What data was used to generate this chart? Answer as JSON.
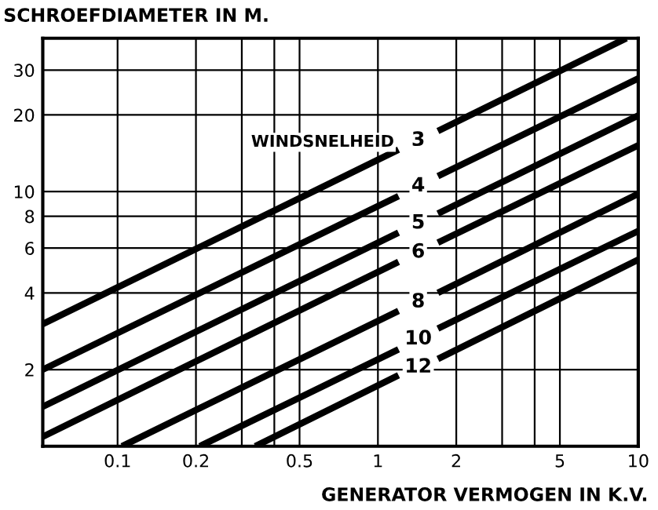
{
  "chart_data": {
    "type": "line",
    "ylabel": "SCHROEFDIAMETER IN M.",
    "xlabel": "GENERATOR VERMOGEN IN K.V.",
    "annotations": [
      "WINDSNELHEID"
    ],
    "log": "xy",
    "grid": true,
    "legend": false,
    "marker": "none",
    "line_style": "solid",
    "xlim": [
      0.0516,
      10
    ],
    "xticks": [
      {
        "value": 0.1,
        "label": "0.1"
      },
      {
        "value": 0.2,
        "label": "0.2"
      },
      {
        "value": 0.3,
        "label": null
      },
      {
        "value": 0.4,
        "label": null
      },
      {
        "value": 0.5,
        "label": "0.5"
      },
      1,
      2,
      {
        "value": 3,
        "label": null
      },
      {
        "value": 4,
        "label": null
      },
      5,
      10
    ],
    "ylim": [
      1,
      40
    ],
    "yticks": [
      2,
      4,
      6,
      8,
      10,
      20,
      30
    ],
    "series": [
      {
        "name": "3",
        "color": "#000000",
        "x": [
          0.0516,
          1.2,
          1.45,
          1.7,
          9.0
        ],
        "values": [
          3.02,
          14.6,
          null,
          17.3,
          40
        ]
      },
      {
        "name": "4",
        "color": "#000000",
        "x": [
          0.0516,
          1.2,
          1.45,
          1.7,
          10
        ],
        "values": [
          2.0,
          9.6,
          null,
          11.5,
          27.8
        ]
      },
      {
        "name": "5",
        "color": "#000000",
        "x": [
          0.0516,
          1.2,
          1.45,
          1.7,
          10
        ],
        "values": [
          1.43,
          6.9,
          null,
          8.2,
          19.9
        ]
      },
      {
        "name": "6",
        "color": "#000000",
        "x": [
          0.0516,
          1.2,
          1.45,
          1.7,
          10
        ],
        "values": [
          1.09,
          5.3,
          null,
          6.3,
          15.2
        ]
      },
      {
        "name": "8",
        "color": "#000000",
        "x": [
          0.104,
          1.2,
          1.45,
          1.7,
          10
        ],
        "values": [
          1,
          3.4,
          null,
          4.0,
          9.8
        ]
      },
      {
        "name": "10",
        "color": "#000000",
        "x": [
          0.207,
          1.2,
          1.45,
          1.7,
          10
        ],
        "values": [
          1,
          2.4,
          null,
          2.9,
          7.0
        ]
      },
      {
        "name": "12",
        "color": "#000000",
        "x": [
          0.338,
          1.2,
          1.45,
          1.7,
          10
        ],
        "values": [
          1,
          1.9,
          null,
          2.2,
          5.4
        ]
      }
    ]
  }
}
